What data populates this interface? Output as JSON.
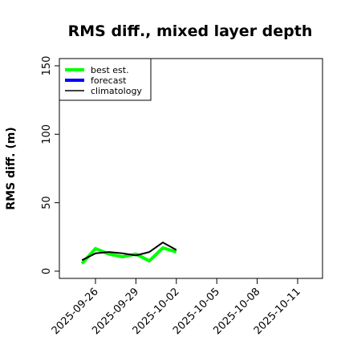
{
  "chart_data": {
    "type": "line",
    "title": "RMS diff., mixed layer depth",
    "ylabel": "RMS diff. (m)",
    "xlabel": "",
    "ylim": [
      0,
      150
    ],
    "yticks": [
      0,
      50,
      100,
      150
    ],
    "xticks": [
      "2025-09-26",
      "2025-09-29",
      "2025-10-02",
      "2025-10-05",
      "2025-10-08",
      "2025-10-11"
    ],
    "highlight_xtick": "2025-10-02",
    "highlight_color": "#228B22",
    "legend_position": "top-left",
    "grid": false,
    "series": [
      {
        "name": "best est.",
        "color": "#00ff00",
        "dates": [
          "2025-09-25",
          "2025-09-26",
          "2025-09-27",
          "2025-09-28",
          "2025-09-29",
          "2025-09-30",
          "2025-10-01",
          "2025-10-02"
        ],
        "values": [
          5.5,
          16.5,
          12.5,
          10.5,
          12.5,
          7.5,
          17,
          14
        ]
      },
      {
        "name": "forecast",
        "color": "#0000ff",
        "dates": [],
        "values": []
      },
      {
        "name": "climatology",
        "color": "#000000",
        "dates": [
          "2025-09-25",
          "2025-09-26",
          "2025-09-27",
          "2025-09-28",
          "2025-09-29",
          "2025-09-30",
          "2025-10-01",
          "2025-10-02"
        ],
        "values": [
          8,
          13,
          14,
          13,
          11.5,
          14,
          21,
          15.5
        ]
      }
    ]
  }
}
